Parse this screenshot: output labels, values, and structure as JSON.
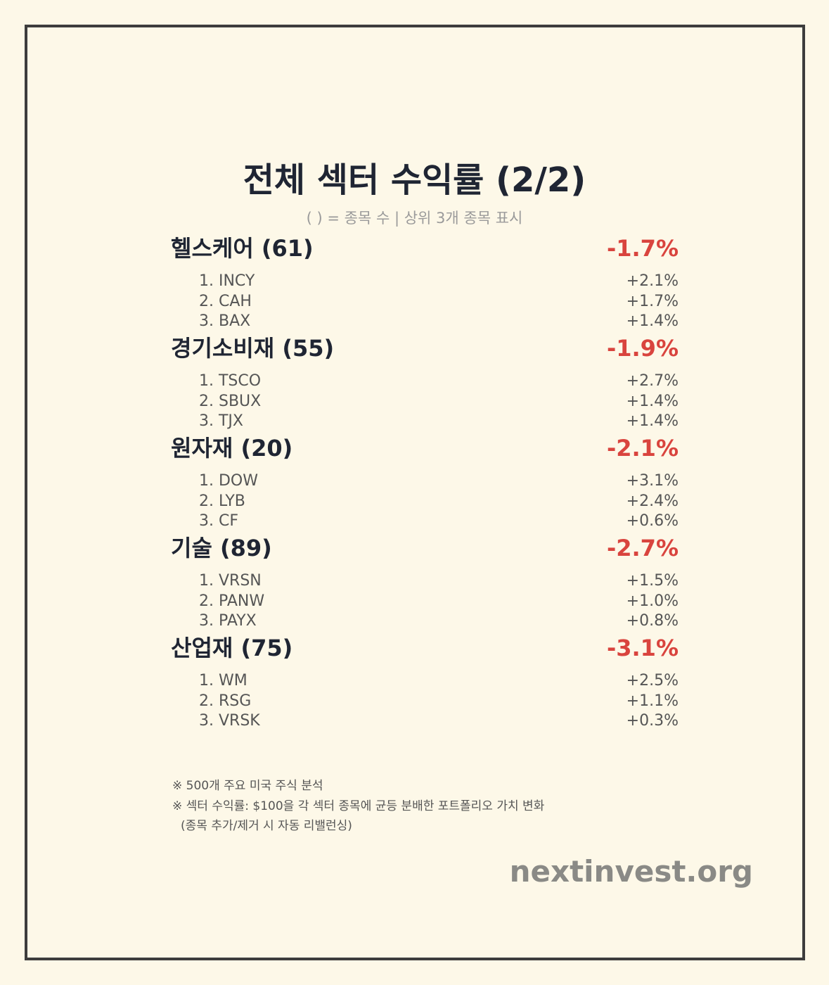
{
  "header": {
    "title": "전체 섹터 수익률 (2/2)",
    "subtitle": "( ) = 종목 수 | 상위 3개 종목 표시"
  },
  "sectors": [
    {
      "name": "헬스케어 (61)",
      "return": "-1.7%",
      "stocks": [
        {
          "label": "1. INCY",
          "return": "+2.1%"
        },
        {
          "label": "2. CAH",
          "return": "+1.7%"
        },
        {
          "label": "3. BAX",
          "return": "+1.4%"
        }
      ]
    },
    {
      "name": "경기소비재 (55)",
      "return": "-1.9%",
      "stocks": [
        {
          "label": "1. TSCO",
          "return": "+2.7%"
        },
        {
          "label": "2. SBUX",
          "return": "+1.4%"
        },
        {
          "label": "3. TJX",
          "return": "+1.4%"
        }
      ]
    },
    {
      "name": "원자재 (20)",
      "return": "-2.1%",
      "stocks": [
        {
          "label": "1. DOW",
          "return": "+3.1%"
        },
        {
          "label": "2. LYB",
          "return": "+2.4%"
        },
        {
          "label": "3. CF",
          "return": "+0.6%"
        }
      ]
    },
    {
      "name": "기술 (89)",
      "return": "-2.7%",
      "stocks": [
        {
          "label": "1. VRSN",
          "return": "+1.5%"
        },
        {
          "label": "2. PANW",
          "return": "+1.0%"
        },
        {
          "label": "3. PAYX",
          "return": "+0.8%"
        }
      ]
    },
    {
      "name": "산업재 (75)",
      "return": "-3.1%",
      "stocks": [
        {
          "label": "1. WM",
          "return": "+2.5%"
        },
        {
          "label": "2. RSG",
          "return": "+1.1%"
        },
        {
          "label": "3. VRSK",
          "return": "+0.3%"
        }
      ]
    }
  ],
  "footnotes": [
    "※ 500개 주요 미국 주식 분석",
    "※ 섹터 수익률: $100을 각 섹터 종목에 균등 분배한 포트폴리오 가치 변화",
    "(종목 추가/제거 시 자동 리밸런싱)"
  ],
  "footer": {
    "brand": "nextinvest.org"
  }
}
